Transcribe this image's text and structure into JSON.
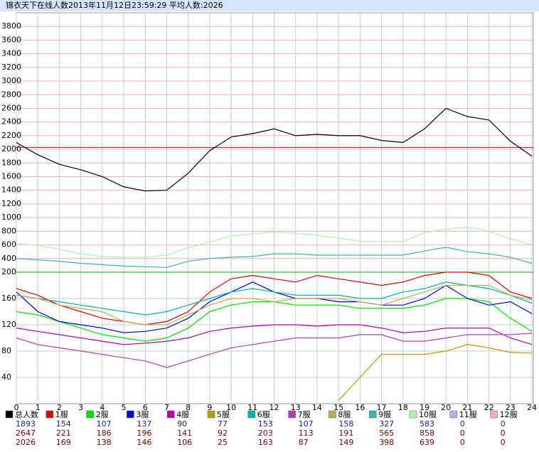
{
  "title": "锦衣天下在线人数2013年11月12日23:59:29   平均人数:2026",
  "chart_data": [
    {
      "type": "line",
      "xlim": [
        0,
        24
      ],
      "ylim": [
        200,
        4000
      ],
      "yticks": [
        400,
        600,
        800,
        1000,
        1200,
        1400,
        1600,
        1800,
        2000,
        2200,
        2400,
        2600,
        2800,
        3000,
        3200,
        3400,
        3600,
        3800
      ],
      "x": [
        0,
        1,
        2,
        3,
        4,
        5,
        6,
        7,
        8,
        9,
        10,
        11,
        12,
        13,
        14,
        15,
        16,
        17,
        18,
        19,
        20,
        21,
        22,
        23,
        24
      ],
      "series": [
        {
          "color": "#000000",
          "values": [
            2100,
            1920,
            1780,
            1700,
            1600,
            1450,
            1390,
            1400,
            1650,
            1980,
            2180,
            2230,
            2300,
            2200,
            2220,
            2200,
            2200,
            2130,
            2100,
            2300,
            2600,
            2480,
            2430,
            2120,
            1900
          ]
        },
        {
          "color": "#b0f0b0",
          "values": [
            620,
            590,
            540,
            470,
            430,
            420,
            420,
            450,
            560,
            640,
            730,
            760,
            790,
            770,
            740,
            700,
            650,
            650,
            650,
            780,
            830,
            860,
            800,
            690,
            600
          ]
        },
        {
          "color": "#40b0b0",
          "values": [
            400,
            380,
            360,
            330,
            310,
            290,
            280,
            270,
            360,
            400,
            420,
            430,
            470,
            470,
            450,
            450,
            450,
            450,
            450,
            510,
            565,
            500,
            470,
            420,
            330
          ]
        }
      ]
    },
    {
      "type": "line",
      "xlim": [
        0,
        24
      ],
      "ylim": [
        0,
        200
      ],
      "yticks": [
        40,
        80,
        120,
        160,
        200
      ],
      "xticks": [
        0,
        1,
        2,
        3,
        4,
        5,
        6,
        7,
        8,
        9,
        10,
        11,
        12,
        13,
        14,
        15,
        16,
        17,
        18,
        19,
        20,
        21,
        22,
        23,
        24
      ],
      "x": [
        0,
        1,
        2,
        3,
        4,
        5,
        6,
        7,
        8,
        9,
        10,
        11,
        12,
        13,
        14,
        15,
        16,
        17,
        18,
        19,
        20,
        21,
        22,
        23,
        24
      ],
      "series": [
        {
          "color": "#e00000",
          "values": [
            175,
            165,
            150,
            140,
            130,
            125,
            120,
            125,
            140,
            170,
            190,
            195,
            190,
            185,
            195,
            190,
            185,
            180,
            185,
            195,
            200,
            200,
            195,
            170,
            160
          ]
        },
        {
          "color": "#00e000",
          "values": [
            140,
            135,
            125,
            115,
            105,
            100,
            95,
            100,
            115,
            140,
            150,
            155,
            155,
            150,
            150,
            150,
            145,
            145,
            145,
            150,
            160,
            160,
            155,
            130,
            110
          ]
        },
        {
          "color": "#0000e0",
          "values": [
            170,
            140,
            125,
            120,
            115,
            108,
            110,
            115,
            130,
            155,
            170,
            185,
            170,
            160,
            160,
            155,
            155,
            150,
            150,
            160,
            180,
            160,
            150,
            155,
            137
          ]
        },
        {
          "color": "#b000b0",
          "values": [
            115,
            110,
            105,
            100,
            95,
            90,
            92,
            95,
            100,
            110,
            115,
            118,
            120,
            120,
            118,
            120,
            120,
            115,
            108,
            110,
            115,
            115,
            115,
            100,
            90
          ]
        },
        {
          "color": "#b0a000",
          "values": [
            null,
            null,
            null,
            null,
            null,
            null,
            null,
            null,
            null,
            null,
            null,
            null,
            null,
            null,
            null,
            5,
            40,
            75,
            75,
            75,
            80,
            90,
            85,
            78,
            77
          ]
        },
        {
          "color": "#00b0b0",
          "values": [
            165,
            160,
            155,
            150,
            145,
            140,
            135,
            140,
            150,
            160,
            170,
            175,
            170,
            165,
            165,
            165,
            160,
            160,
            170,
            175,
            185,
            180,
            175,
            165,
            153
          ]
        },
        {
          "color": "#b040b0",
          "values": [
            100,
            90,
            85,
            80,
            75,
            70,
            65,
            55,
            65,
            75,
            85,
            90,
            95,
            100,
            100,
            100,
            105,
            105,
            95,
            95,
            100,
            105,
            105,
            105,
            107
          ]
        },
        {
          "color": "#b8b050",
          "values": [
            165,
            160,
            150,
            145,
            140,
            125,
            120,
            120,
            135,
            150,
            160,
            160,
            155,
            160,
            160,
            160,
            155,
            150,
            160,
            170,
            180,
            180,
            180,
            165,
            158
          ]
        }
      ]
    }
  ],
  "legend": [
    {
      "name": "总人数",
      "color": "#000000",
      "current": 1893,
      "max": 2647,
      "average": 2026
    },
    {
      "name": "1服",
      "color": "#e00000",
      "current": 154,
      "max": 221,
      "average": 169
    },
    {
      "name": "2服",
      "color": "#00e000",
      "current": 107,
      "max": 186,
      "average": 138
    },
    {
      "name": "3服",
      "color": "#0000e0",
      "current": 137,
      "max": 196,
      "average": 146
    },
    {
      "name": "4服",
      "color": "#b000b0",
      "current": 90,
      "max": 141,
      "average": 106
    },
    {
      "name": "5服",
      "color": "#b0a000",
      "current": 77,
      "max": 92,
      "average": 25
    },
    {
      "name": "6服",
      "color": "#00b0b0",
      "current": 153,
      "max": 203,
      "average": 163
    },
    {
      "name": "7服",
      "color": "#b040b0",
      "current": 107,
      "max": 113,
      "average": 87
    },
    {
      "name": "8服",
      "color": "#b8b050",
      "current": 158,
      "max": 191,
      "average": 149
    },
    {
      "name": "9服",
      "color": "#40b0b0",
      "current": 327,
      "max": 565,
      "average": 398
    },
    {
      "name": "10服",
      "color": "#b0f0b0",
      "current": 583,
      "max": 858,
      "average": 639
    },
    {
      "name": "11服",
      "color": "#b0b0f0",
      "current": 0,
      "max": 0,
      "average": 0
    },
    {
      "name": "12服",
      "color": "#f0b0b0",
      "current": 0,
      "max": 0,
      "average": 0
    }
  ]
}
